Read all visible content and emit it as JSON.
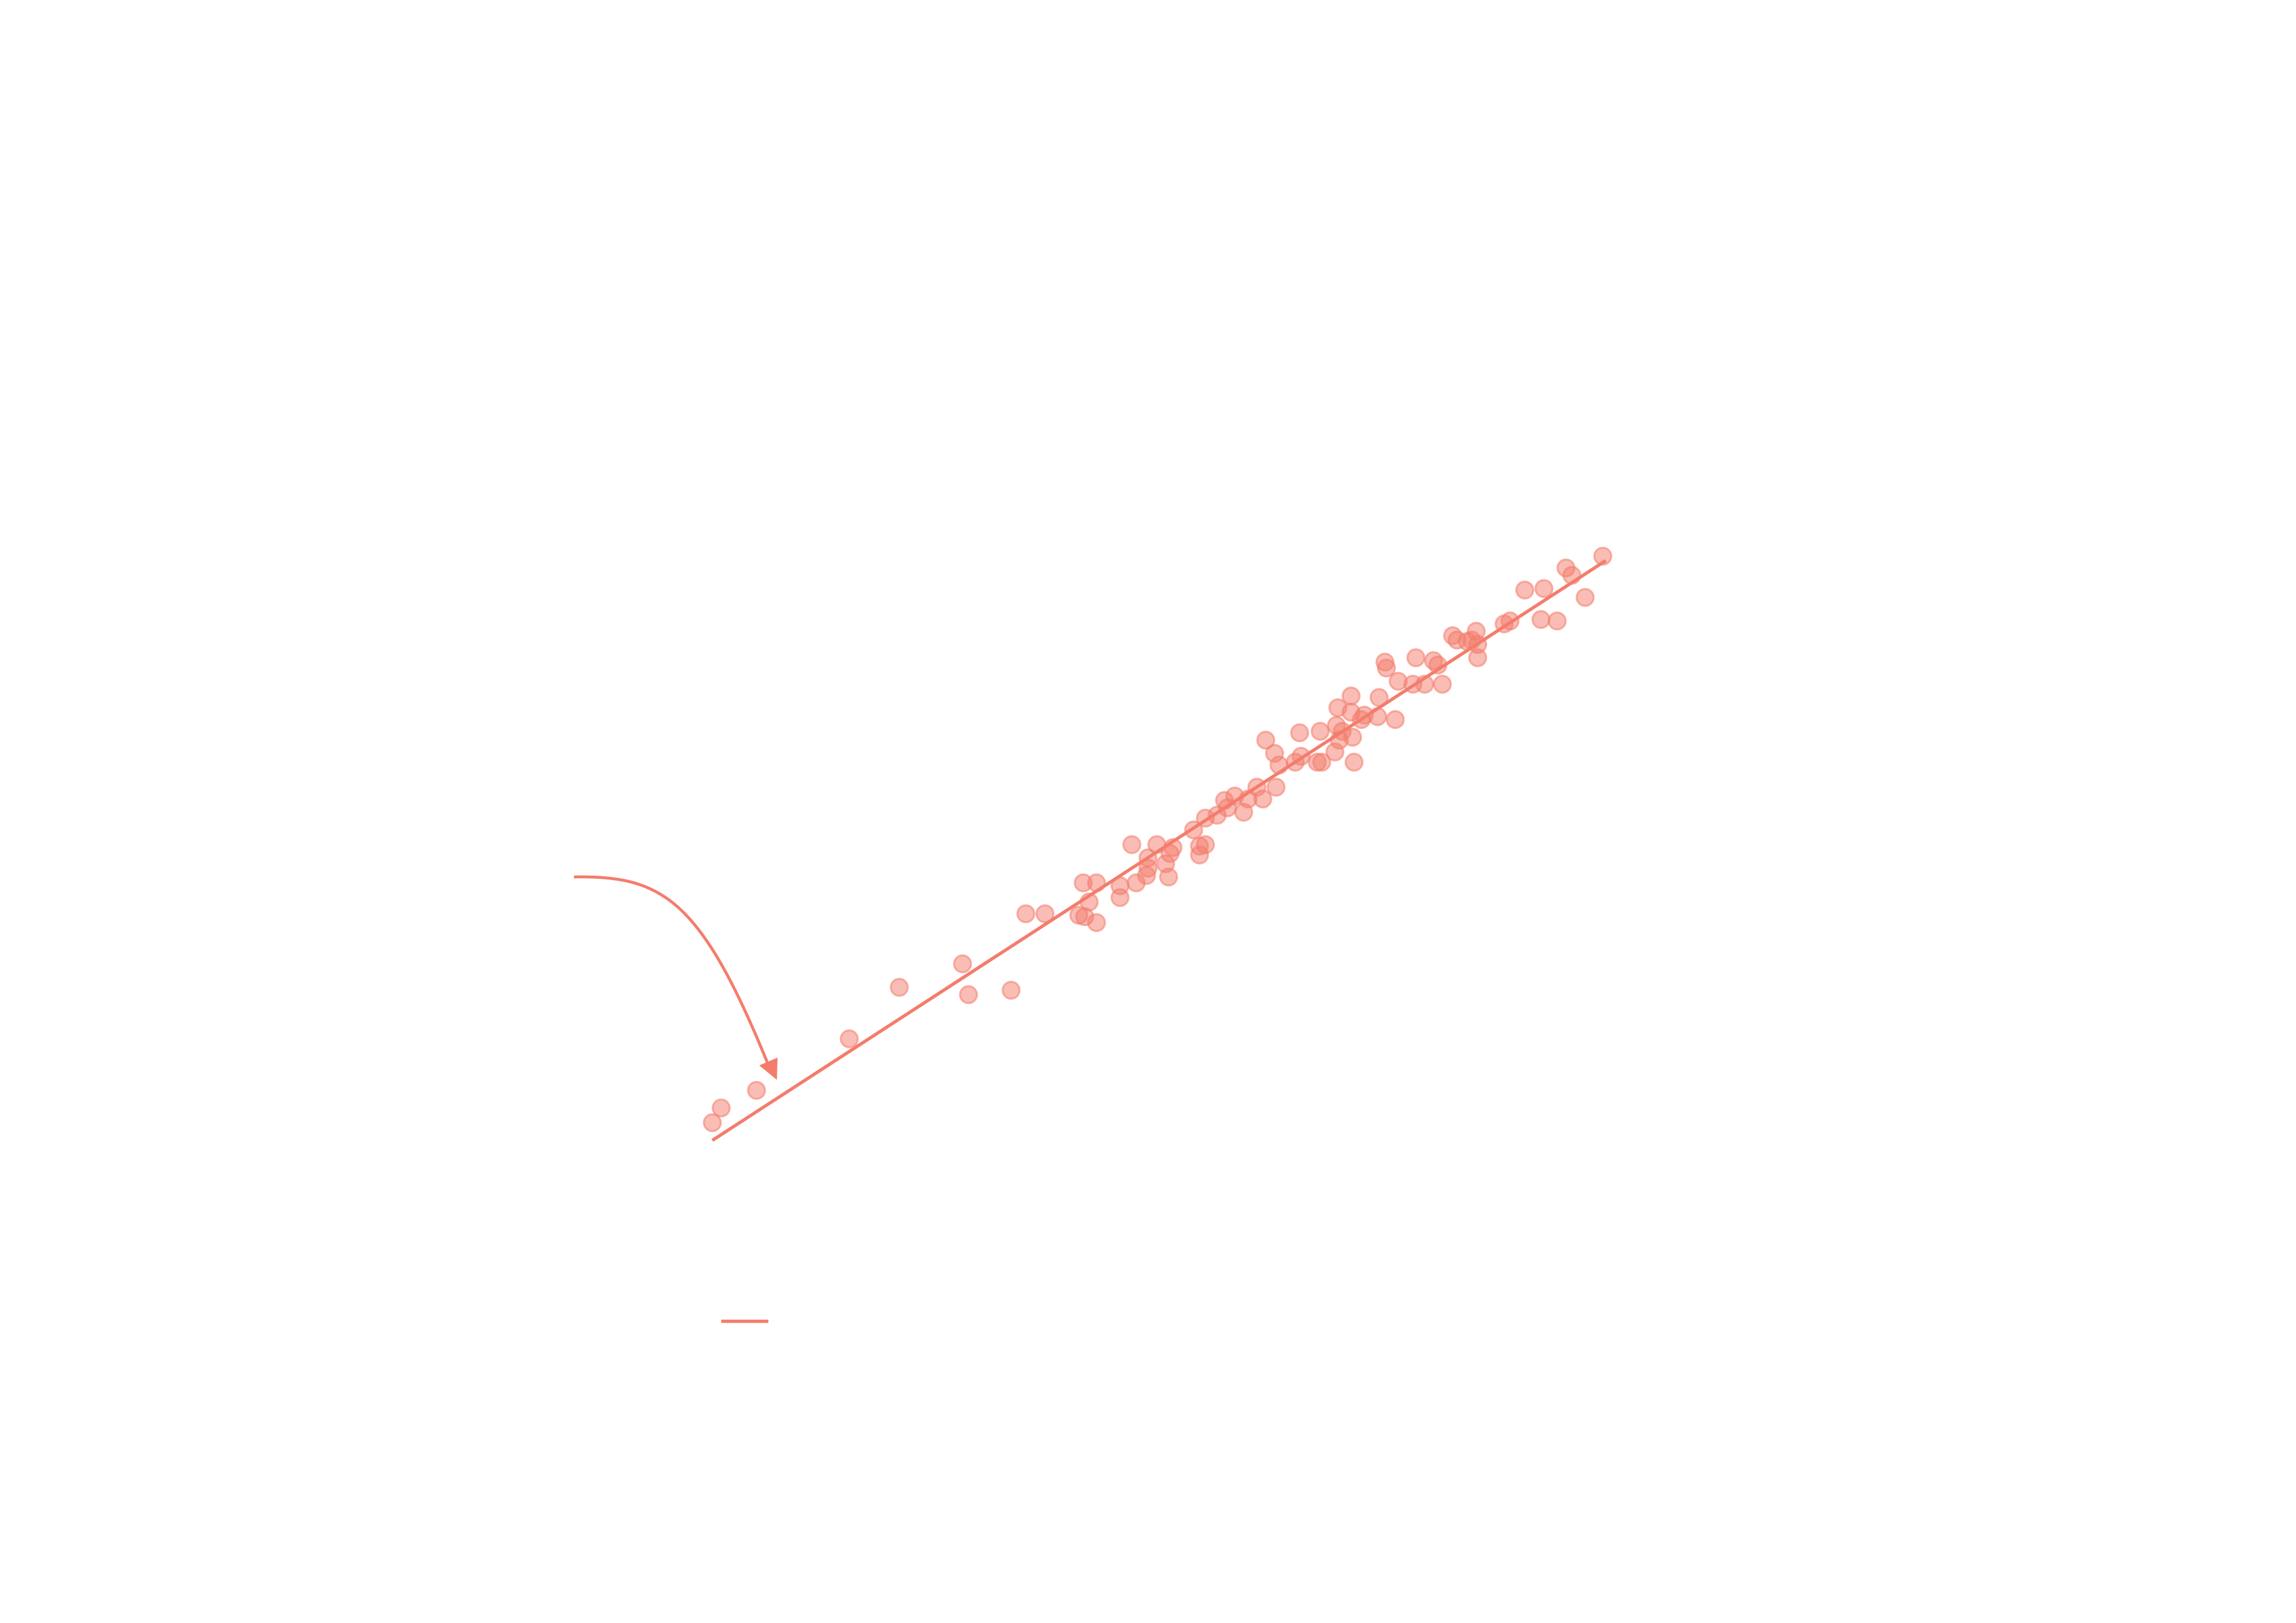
{
  "chart_data": {
    "type": "scatter",
    "xlim": [
      0,
      1560
    ],
    "ylim": [
      0,
      1103
    ],
    "legend": "lower-left",
    "series": [
      {
        "type": "scatter",
        "color": "#f47c6c",
        "x": [
          484,
          490,
          514,
          577,
          611,
          654,
          658,
          687,
          697,
          710,
          733,
          737,
          740,
          745,
          736,
          745,
          761,
          761,
          769,
          772,
          779,
          780,
          780,
          786,
          792,
          794,
          795,
          797,
          811,
          815,
          815,
          819,
          819,
          827,
          832,
          834,
          839,
          845,
          848,
          854,
          858,
          860,
          866,
          867,
          869,
          880,
          883,
          884,
          895,
          897,
          898,
          907,
          908,
          909,
          910,
          912,
          918,
          918,
          919,
          920,
          925,
          927,
          936,
          937,
          941,
          942,
          948,
          950,
          960,
          962,
          968,
          974,
          977,
          980,
          987,
          990,
          997,
          1003,
          1004,
          1004,
          1000,
          1022,
          1026,
          1036,
          1047,
          1049,
          1058,
          1064,
          1068,
          1077,
          1089
        ],
        "values": [
          340,
          350,
          362,
          397,
          432,
          448,
          427,
          430,
          482,
          482,
          481,
          480,
          490,
          476,
          503,
          503,
          493,
          501,
          529,
          503,
          508,
          520,
          513,
          529,
          516,
          507,
          523,
          527,
          539,
          522,
          528,
          529,
          547,
          549,
          559,
          554,
          562,
          551,
          560,
          568,
          560,
          600,
          591,
          568,
          583,
          585,
          605,
          589,
          585,
          606,
          585,
          592,
          610,
          622,
          600,
          606,
          630,
          619,
          602,
          585,
          614,
          617,
          616,
          629,
          653,
          649,
          614,
          640,
          638,
          656,
          638,
          654,
          651,
          638,
          671,
          668,
          667,
          674,
          665,
          656,
          668,
          679,
          681,
          702,
          682,
          703,
          681,
          717,
          712,
          697,
          725
        ]
      },
      {
        "type": "line",
        "color": "#f47c6c",
        "x": [
          484,
          1091
        ],
        "values": [
          328,
          722
        ]
      }
    ]
  }
}
